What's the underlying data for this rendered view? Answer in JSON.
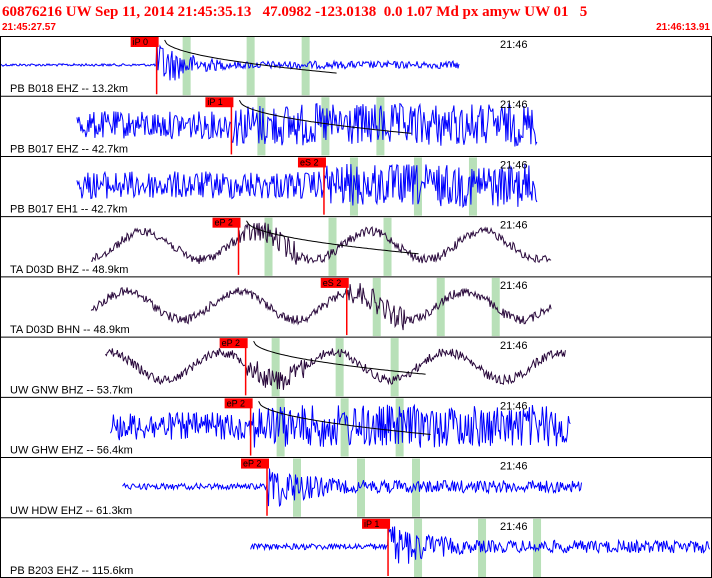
{
  "header": {
    "title": "60876216 UW Sep 11, 2014 21:45:35.13   47.0982 -123.0138  0.0 1.07 Md px amyw UW 01   5",
    "time_start": "21:45:27.57",
    "time_end": "21:46:13.91"
  },
  "tick_label": "21:46",
  "colors": {
    "header_text": "#ff0000",
    "pick_box": "#ff0000",
    "window_band": "#b8e0b8",
    "trace_blue": "#0000ff",
    "trace_dark": "#2b0a3d",
    "coda_curve": "#000000"
  },
  "channels": [
    {
      "label": "PB B018 EHZ -- 13.2km",
      "color": "blue",
      "pick": "iP 0",
      "pick_frac": 0.22,
      "s_pick": "",
      "s_frac": 0,
      "sig_start": 0.0,
      "sig_end": 0.645,
      "style": "burst",
      "coda": true
    },
    {
      "label": "PB B017 EHZ -- 42.7km",
      "color": "blue",
      "pick": "iP 1",
      "pick_frac": 0.325,
      "s_pick": "",
      "s_frac": 0,
      "sig_start": 0.108,
      "sig_end": 0.755,
      "style": "noisy",
      "coda": true
    },
    {
      "label": "PB B017 EH1 -- 42.7km",
      "color": "blue",
      "pick": "eS 2",
      "pick_frac": 0.455,
      "s_pick": "",
      "s_frac": 0,
      "sig_start": 0.108,
      "sig_end": 0.755,
      "style": "noisy",
      "coda": false
    },
    {
      "label": "TA D03D BHZ -- 48.9km",
      "color": "dark",
      "pick": "eP 2",
      "pick_frac": 0.335,
      "s_pick": "",
      "s_frac": 0,
      "sig_start": 0.128,
      "sig_end": 0.775,
      "style": "wavy",
      "coda": true
    },
    {
      "label": "TA D03D BHN -- 48.9km",
      "color": "dark",
      "pick": "eS 2",
      "pick_frac": 0.487,
      "s_pick": "",
      "s_frac": 0,
      "sig_start": 0.128,
      "sig_end": 0.775,
      "style": "wavy",
      "coda": false
    },
    {
      "label": "UW GNW BHZ -- 53.7km",
      "color": "dark",
      "pick": "eP 2",
      "pick_frac": 0.345,
      "s_pick": "",
      "s_frac": 0,
      "sig_start": 0.148,
      "sig_end": 0.795,
      "style": "wavy",
      "coda": true
    },
    {
      "label": "UW GHW EHZ -- 56.4km",
      "color": "blue",
      "pick": "eP 2",
      "pick_frac": 0.352,
      "s_pick": "",
      "s_frac": 0,
      "sig_start": 0.155,
      "sig_end": 0.802,
      "style": "noisy",
      "coda": true
    },
    {
      "label": "UW HDW EHZ -- 61.3km",
      "color": "blue",
      "pick": "eP 2",
      "pick_frac": 0.375,
      "s_pick": "",
      "s_frac": 0,
      "sig_start": 0.172,
      "sig_end": 0.818,
      "style": "quiet",
      "coda": false
    },
    {
      "label": "PB B203 EHZ -- 115.6km",
      "color": "blue",
      "pick": "iP 1",
      "pick_frac": 0.545,
      "s_pick": "",
      "s_frac": 0,
      "sig_start": 0.352,
      "sig_end": 1.0,
      "style": "quiet",
      "coda": false
    }
  ]
}
